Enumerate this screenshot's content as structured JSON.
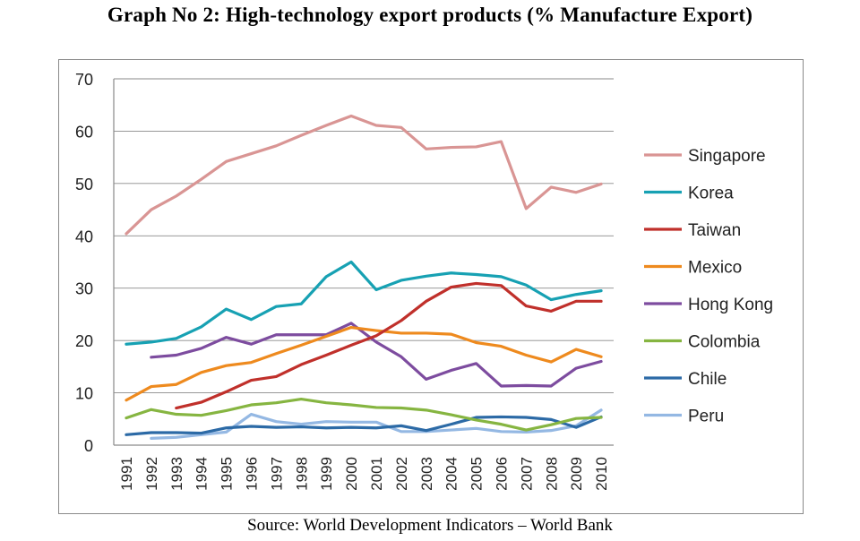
{
  "page": {
    "title": "Graph No 2: High-technology export products (% Manufacture Export)",
    "source": "Source: World Development Indicators – World Bank"
  },
  "chart_data": {
    "type": "line",
    "title": "Graph No 2: High-technology export products (% Manufacture Export)",
    "xlabel": "",
    "ylabel": "",
    "ylim": [
      0,
      70
    ],
    "yticks": [
      0,
      10,
      20,
      30,
      40,
      50,
      60,
      70
    ],
    "grid": true,
    "legend_position": "right",
    "x": [
      "1991",
      "1992",
      "1993",
      "1994",
      "1995",
      "1996",
      "1997",
      "1998",
      "1999",
      "2000",
      "2001",
      "2002",
      "2003",
      "2004",
      "2005",
      "2006",
      "2007",
      "2008",
      "2009",
      "2010"
    ],
    "series": [
      {
        "name": "Singapore",
        "color": "#d99594",
        "values": [
          40.4,
          45,
          47.6,
          50.8,
          54.2,
          55.7,
          57.2,
          59.2,
          61.1,
          62.9,
          61.1,
          60.7,
          56.6,
          56.9,
          57,
          58,
          45.2,
          49.3,
          48.3,
          49.9
        ]
      },
      {
        "name": "Korea",
        "color": "#17a1b3",
        "values": [
          19.3,
          19.7,
          20.4,
          22.6,
          26,
          24,
          26.5,
          27,
          32.2,
          35,
          29.7,
          31.5,
          32.3,
          32.9,
          32.6,
          32.2,
          30.6,
          27.8,
          28.8,
          29.5
        ]
      },
      {
        "name": "Taiwan",
        "color": "#c0302b",
        "values": [
          null,
          null,
          7.1,
          8.2,
          10.2,
          12.4,
          13.1,
          15.4,
          17.2,
          19.1,
          20.9,
          23.8,
          27.5,
          30.2,
          30.9,
          30.5,
          26.6,
          25.6,
          27.5,
          27.5
        ]
      },
      {
        "name": "Mexico",
        "color": "#ee8a1e",
        "values": [
          8.6,
          11.2,
          11.6,
          13.9,
          15.2,
          15.8,
          17.5,
          19.1,
          20.8,
          22.5,
          21.9,
          21.4,
          21.4,
          21.2,
          19.6,
          18.9,
          17.2,
          15.9,
          18.3,
          16.9
        ]
      },
      {
        "name": "Hong Kong",
        "color": "#7d4c9f",
        "values": [
          null,
          16.8,
          17.2,
          18.5,
          20.6,
          19.3,
          21.1,
          21.1,
          21.1,
          23.3,
          19.7,
          16.9,
          12.6,
          14.3,
          15.6,
          11.3,
          11.4,
          11.3,
          14.7,
          16
        ]
      },
      {
        "name": "Colombia",
        "color": "#86b541",
        "values": [
          5.2,
          6.8,
          5.9,
          5.7,
          6.6,
          7.7,
          8.1,
          8.8,
          8.1,
          7.7,
          7.2,
          7.1,
          6.7,
          5.8,
          4.8,
          4,
          2.9,
          3.9,
          5.1,
          5.3
        ]
      },
      {
        "name": "Chile",
        "color": "#2c6aa6",
        "values": [
          2,
          2.4,
          2.4,
          2.3,
          3.3,
          3.6,
          3.4,
          3.5,
          3.3,
          3.4,
          3.3,
          3.7,
          2.8,
          4,
          5.3,
          5.4,
          5.3,
          4.9,
          3.4,
          5.4
        ]
      },
      {
        "name": "Peru",
        "color": "#94b8e3",
        "values": [
          null,
          1.3,
          1.5,
          2,
          2.5,
          5.9,
          4.5,
          4,
          4.5,
          4.4,
          4.4,
          2.6,
          2.6,
          2.9,
          3.2,
          2.6,
          2.5,
          2.8,
          3.7,
          6.7
        ]
      }
    ]
  }
}
